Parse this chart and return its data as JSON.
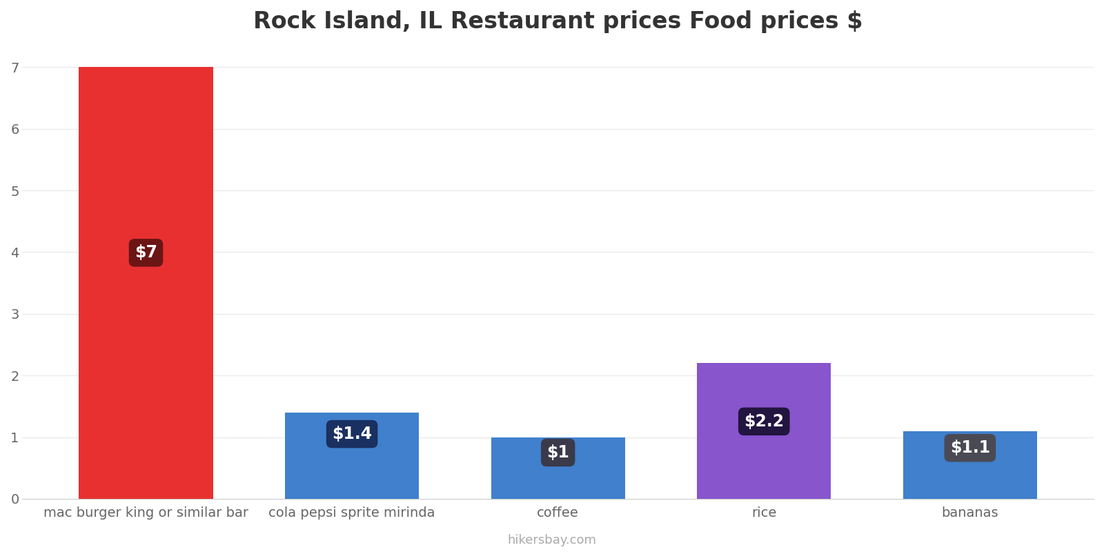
{
  "title": "Rock Island, IL Restaurant prices Food prices $",
  "categories": [
    "mac burger king or similar bar",
    "cola pepsi sprite mirinda",
    "coffee",
    "rice",
    "bananas"
  ],
  "values": [
    7,
    1.4,
    1.0,
    2.2,
    1.1
  ],
  "bar_colors": [
    "#e83030",
    "#4080cc",
    "#4080cc",
    "#8855cc",
    "#4080cc"
  ],
  "label_texts": [
    "$7",
    "$1.4",
    "$1",
    "$2.2",
    "$1.1"
  ],
  "label_box_colors": [
    "#6b1515",
    "#1a3060",
    "#3a3a4a",
    "#221540",
    "#4a4a55"
  ],
  "label_box_top_colors": [
    "#6b1515",
    "#1a3060",
    "#7a7a88",
    "#221540",
    "#8a8a98"
  ],
  "ylim": [
    0,
    7.35
  ],
  "yticks": [
    0,
    1,
    2,
    3,
    4,
    5,
    6,
    7
  ],
  "background_color": "#ffffff",
  "watermark": "hikersbay.com",
  "title_fontsize": 24,
  "tick_fontsize": 14,
  "label_fontsize": 17,
  "bar_width": 0.65
}
